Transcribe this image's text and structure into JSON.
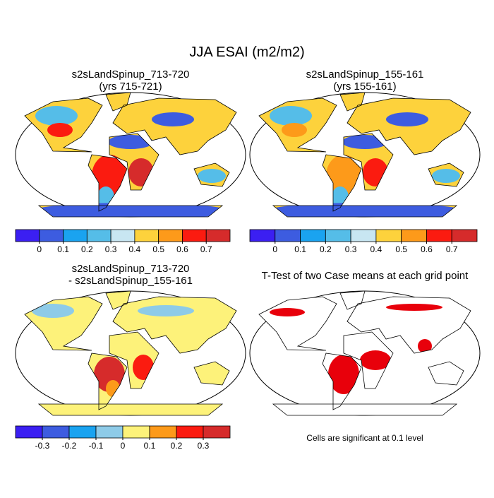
{
  "title": "JJA ESAI (m2/m2)",
  "panels": [
    {
      "title": [
        "s2sLandSpinup_713-720",
        "(yrs 715-721)"
      ]
    },
    {
      "title": [
        "s2sLandSpinup_155-161",
        "(yrs 155-161)"
      ]
    },
    {
      "title": [
        "s2sLandSpinup_713-720",
        "- s2sLandSpinup_155-161"
      ]
    },
    {
      "title": [
        "T-Test of two Case means at each grid point"
      ],
      "note": "Cells are significant at 0.1 level"
    }
  ],
  "colorbars": [
    {
      "colors": [
        "#3b1ff2",
        "#3d5ce0",
        "#1aa3f0",
        "#55bde8",
        "#c8e6f2",
        "#fdd23c",
        "#fd9a1a",
        "#fb1b10",
        "#d62b2b"
      ],
      "ticks": [
        0,
        0.1,
        0.2,
        0.3,
        0.4,
        0.5,
        0.6,
        0.7
      ]
    },
    {
      "colors": [
        "#3b1ff2",
        "#3d5ce0",
        "#1aa3f0",
        "#8ecbe8",
        "#fdf27a",
        "#fd9a1a",
        "#fb1b10",
        "#d62b2b"
      ],
      "ticks": [
        -0.3,
        -0.2,
        -0.1,
        0,
        0.1,
        0.2,
        0.3
      ]
    }
  ]
}
